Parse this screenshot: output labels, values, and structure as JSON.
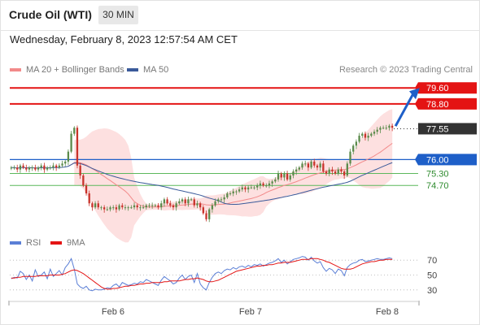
{
  "header": {
    "title": "Crude Oil (WTI)",
    "timeframe": "30 MIN"
  },
  "datetime": "Wednesday, February 8, 2023 12:57:54 AM CET",
  "legend": {
    "ma20": "MA 20 + Bollinger Bands",
    "ma50": "MA 50",
    "rsi": "RSI",
    "ma9": "9MA",
    "copyright": "Research © 2023 Trading Central"
  },
  "colors": {
    "resistance": "#e41414",
    "support_blue": "#1e5fc8",
    "support_green": "#5cb85c",
    "up_candle": "#5a8a4a",
    "down_candle": "#c8322a",
    "ma20": "#f28a8a",
    "ma50": "#3a5a9a",
    "bollinger_fill": "#fde0e0",
    "rsi": "#5b7fd6",
    "rsi_ma": "#e41414",
    "current": "#333333"
  },
  "chart_data": [
    {
      "type": "line",
      "subtype": "candlestick",
      "ylim": [
        72.3,
        80.1
      ],
      "x_ticks": [
        "Feb 6",
        "Feb 7",
        "Feb 8"
      ],
      "closes": [
        75.6,
        75.6,
        75.5,
        75.7,
        75.6,
        75.5,
        75.6,
        75.6,
        75.5,
        75.6,
        75.7,
        75.5,
        75.6,
        75.6,
        75.7,
        75.6,
        75.7,
        75.8,
        75.9,
        76.4,
        77.3,
        77.6,
        75.7,
        75.2,
        74.7,
        74.3,
        73.8,
        73.6,
        73.8,
        73.6,
        73.6,
        73.5,
        73.5,
        73.6,
        73.6,
        73.5,
        73.7,
        73.6,
        73.6,
        73.6,
        73.6,
        73.7,
        73.6,
        73.6,
        73.6,
        73.7,
        73.7,
        73.7,
        73.7,
        73.6,
        73.8,
        74.0,
        73.8,
        73.7,
        73.6,
        73.8,
        73.9,
        74.0,
        73.8,
        74.0,
        74.0,
        73.7,
        73.8,
        73.6,
        73.3,
        73.0,
        73.5,
        73.7,
        73.9,
        74.0,
        74.0,
        74.1,
        74.3,
        74.3,
        74.4,
        74.4,
        74.5,
        74.6,
        74.5,
        74.6,
        74.6,
        74.6,
        74.7,
        74.8,
        74.7,
        74.7,
        74.8,
        74.9,
        75.0,
        75.3,
        75.1,
        75.3,
        75.0,
        75.2,
        75.4,
        75.5,
        75.6,
        75.8,
        75.8,
        75.6,
        75.9,
        75.7,
        75.6,
        75.8,
        75.4,
        75.3,
        75.5,
        75.4,
        75.3,
        75.5,
        75.4,
        75.2,
        75.8,
        76.4,
        76.7,
        76.9,
        77.2,
        77.3,
        77.1,
        77.2,
        77.3,
        77.4,
        77.5,
        77.6,
        77.6,
        77.6,
        77.7,
        77.6
      ],
      "levels": [
        {
          "label": "79.60",
          "value": 79.6,
          "kind": "resistance",
          "style": "solid"
        },
        {
          "label": "78.80",
          "value": 78.8,
          "kind": "resistance",
          "style": "solid"
        },
        {
          "label": "77.55",
          "value": 77.55,
          "kind": "current",
          "style": "dotted"
        },
        {
          "label": "76.00",
          "value": 76.0,
          "kind": "pivot",
          "style": "solid"
        },
        {
          "label": "75.30",
          "value": 75.3,
          "kind": "support",
          "style": "solid"
        },
        {
          "label": "74.70",
          "value": 74.7,
          "kind": "support",
          "style": "solid"
        }
      ],
      "forecast_target": 79.6
    },
    {
      "type": "line",
      "title": "RSI",
      "ylim": [
        20,
        80
      ],
      "y_ticks": [
        70,
        50,
        30
      ],
      "series": [
        {
          "name": "RSI",
          "values": [
            45,
            47,
            46,
            55,
            52,
            44,
            50,
            42,
            57,
            48,
            50,
            54,
            45,
            58,
            48,
            52,
            56,
            50,
            60,
            65,
            72,
            58,
            38,
            34,
            32,
            35,
            30,
            29,
            31,
            30,
            30,
            31,
            33,
            32,
            36,
            38,
            34,
            40,
            38,
            36,
            37,
            39,
            38,
            41,
            40,
            44,
            42,
            40,
            38,
            36,
            43,
            48,
            45,
            42,
            38,
            40,
            46,
            50,
            44,
            48,
            50,
            40,
            52,
            38,
            33,
            30,
            40,
            47,
            52,
            54,
            52,
            56,
            58,
            57,
            60,
            58,
            61,
            62,
            60,
            63,
            61,
            64,
            63,
            65,
            62,
            64,
            66,
            67,
            69,
            72,
            67,
            70,
            65,
            68,
            71,
            72,
            73,
            75,
            74,
            70,
            74,
            69,
            66,
            68,
            60,
            55,
            59,
            57,
            52,
            58,
            56,
            49,
            60,
            64,
            66,
            67,
            70,
            71,
            68,
            69,
            70,
            71,
            72,
            71,
            71,
            72,
            73,
            72
          ]
        },
        {
          "name": "9MA",
          "values": [
            46,
            46,
            47,
            47,
            48,
            48,
            48,
            48,
            48,
            49,
            49,
            49,
            49,
            50,
            50,
            50,
            50,
            51,
            52,
            54,
            56,
            57,
            56,
            54,
            52,
            49,
            46,
            43,
            40,
            37,
            34,
            32,
            31,
            31,
            32,
            32,
            33,
            34,
            35,
            35,
            36,
            36,
            37,
            38,
            38,
            39,
            39,
            40,
            40,
            40,
            40,
            41,
            41,
            42,
            42,
            42,
            42,
            43,
            44,
            44,
            45,
            45,
            46,
            45,
            44,
            42,
            41,
            41,
            42,
            43,
            45,
            47,
            49,
            51,
            53,
            55,
            56,
            57,
            58,
            59,
            60,
            61,
            62,
            62,
            63,
            63,
            64,
            64,
            65,
            66,
            66,
            67,
            67,
            67,
            68,
            69,
            70,
            71,
            71,
            71,
            72,
            72,
            72,
            71,
            70,
            68,
            67,
            65,
            63,
            61,
            59,
            58,
            58,
            58,
            59,
            61,
            63,
            65,
            66,
            67,
            68,
            68,
            69,
            70,
            70,
            71,
            71,
            71
          ]
        }
      ]
    }
  ]
}
